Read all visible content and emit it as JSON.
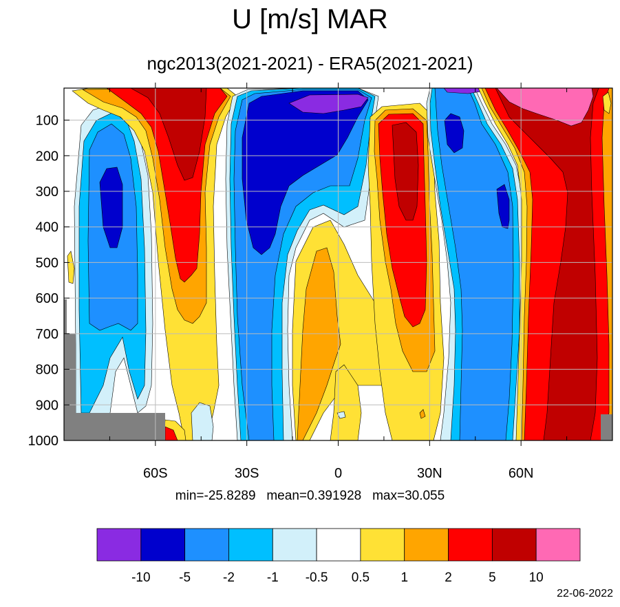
{
  "title": "U [m/s] MAR",
  "subtitle": "ngc2013(2021-2021) - ERA5(2021-2021)",
  "stats": {
    "min": "min=-25.8289",
    "mean": "mean=0.391928",
    "max": "max=30.055"
  },
  "date": "22-06-2022",
  "colors": {
    "lt_m10": "#8a2be2",
    "m10_m5": "#0000cd",
    "m5_m2": "#1e90ff",
    "m2_m1": "#00bfff",
    "m1_m05": "#d2f0fa",
    "m05_05": "#ffffff",
    "p05_1": "#ffe135",
    "p1_2": "#ffa500",
    "p2_5": "#ff0000",
    "p5_10": "#c00000",
    "gt_10": "#ff69b4",
    "missing": "#808080"
  },
  "chart_data": {
    "type": "heatmap",
    "title": "U [m/s] MAR",
    "subtitle": "ngc2013(2021-2021) - ERA5(2021-2021)",
    "x_axis": {
      "range": [
        -90,
        90
      ],
      "ticks": [
        -60,
        -30,
        0,
        30,
        60
      ],
      "tick_labels": [
        "60S",
        "30S",
        "0",
        "30N",
        "60N"
      ]
    },
    "y_axis": {
      "range": [
        1000,
        10
      ],
      "reversed": true,
      "ticks": [
        100,
        200,
        300,
        400,
        500,
        600,
        700,
        800,
        900,
        1000
      ],
      "tick_labels": [
        "100",
        "200",
        "300",
        "400",
        "500",
        "600",
        "700",
        "800",
        "900",
        "1000"
      ]
    },
    "grid": true,
    "colorbar": {
      "placement": "bottom",
      "levels": [
        "-10",
        "-5",
        "-2",
        "-1",
        "-0.5",
        "0.5",
        "1",
        "2",
        "5",
        "10"
      ],
      "colors": [
        "#8a2be2",
        "#0000cd",
        "#1e90ff",
        "#00bfff",
        "#d2f0fa",
        "#ffffff",
        "#ffe135",
        "#ffa500",
        "#ff0000",
        "#c00000",
        "#ff69b4"
      ]
    },
    "bands": [
      {
        "lat": -85,
        "range": "-5 to -1"
      },
      {
        "lat": -75,
        "range": "-10 to -2"
      },
      {
        "lat": -57,
        "range": "2 to 10"
      },
      {
        "lat": -45,
        "range": "2 to 10"
      },
      {
        "lat": -25,
        "range": "-10 to -2"
      },
      {
        "lat": -10,
        "range": "-25 to -5"
      },
      {
        "lat": -3,
        "range": "0.5 to 2"
      },
      {
        "lat": 8,
        "range": "-0.5 to 1"
      },
      {
        "lat": 20,
        "range": "1 to 10"
      },
      {
        "lat": 38,
        "range": "-5 to -1"
      },
      {
        "lat": 50,
        "range": "-5 to -2"
      },
      {
        "lat": 65,
        "range": "2 to 10"
      },
      {
        "lat": 75,
        "range": "5 to 30"
      },
      {
        "lat": 85,
        "range": "2 to 10"
      }
    ],
    "min": -25.8289,
    "mean": 0.391928,
    "max": 30.055
  }
}
